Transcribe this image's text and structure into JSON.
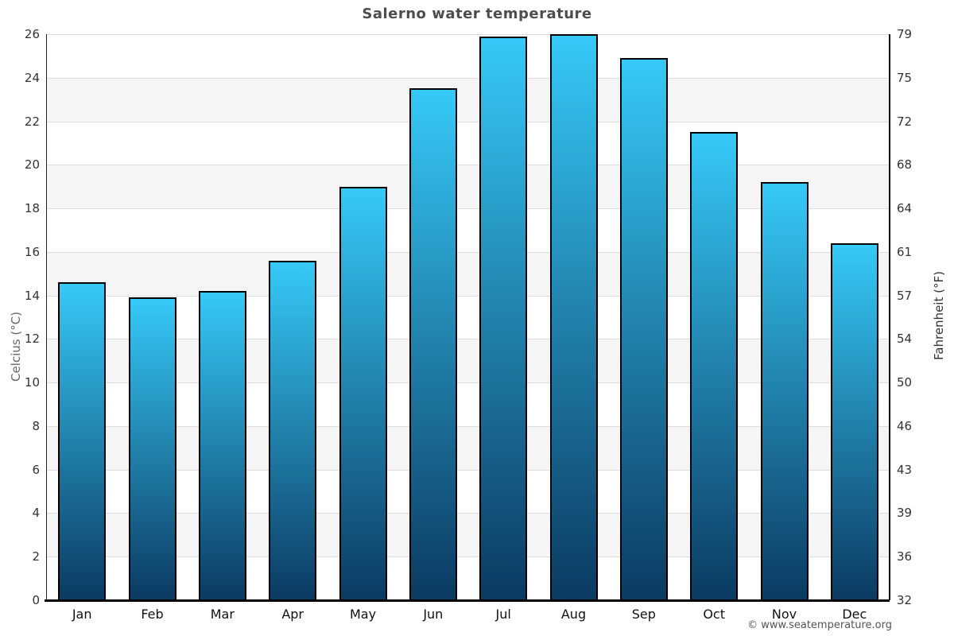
{
  "title": "Salerno water temperature",
  "copyright": "© www.seatemperature.org",
  "axes": {
    "left_label": "Celcius (°C)",
    "right_label": "Fahrenheit (°F)"
  },
  "chart_data": {
    "type": "bar",
    "title": "Salerno water temperature",
    "categories": [
      "Jan",
      "Feb",
      "Mar",
      "Apr",
      "May",
      "Jun",
      "Jul",
      "Aug",
      "Sep",
      "Oct",
      "Nov",
      "Dec"
    ],
    "values": [
      14.6,
      13.9,
      14.2,
      15.6,
      19.0,
      23.5,
      25.9,
      26.0,
      24.9,
      21.5,
      19.2,
      16.4
    ],
    "xlabel": "",
    "ylabel": "Celcius (°C)",
    "ylabel_right": "Fahrenheit (°F)",
    "ylim": [
      0,
      26
    ],
    "yticks_left": [
      0,
      2,
      4,
      6,
      8,
      10,
      12,
      14,
      16,
      18,
      20,
      22,
      24,
      26
    ],
    "yticks_right": [
      "32",
      "36",
      "39",
      "43",
      "46",
      "50",
      "54",
      "57",
      "61",
      "64",
      "68",
      "72",
      "75",
      "79"
    ],
    "grid": true,
    "legend": false,
    "colors": {
      "bar_gradient_top": "#36c9f7",
      "bar_gradient_bottom": "#0b3a61",
      "bar_border": "#000000",
      "gridline": "#dddddd",
      "stripe": "#f5f5f5",
      "axis": "#000000",
      "left_axis": "#222222"
    }
  }
}
